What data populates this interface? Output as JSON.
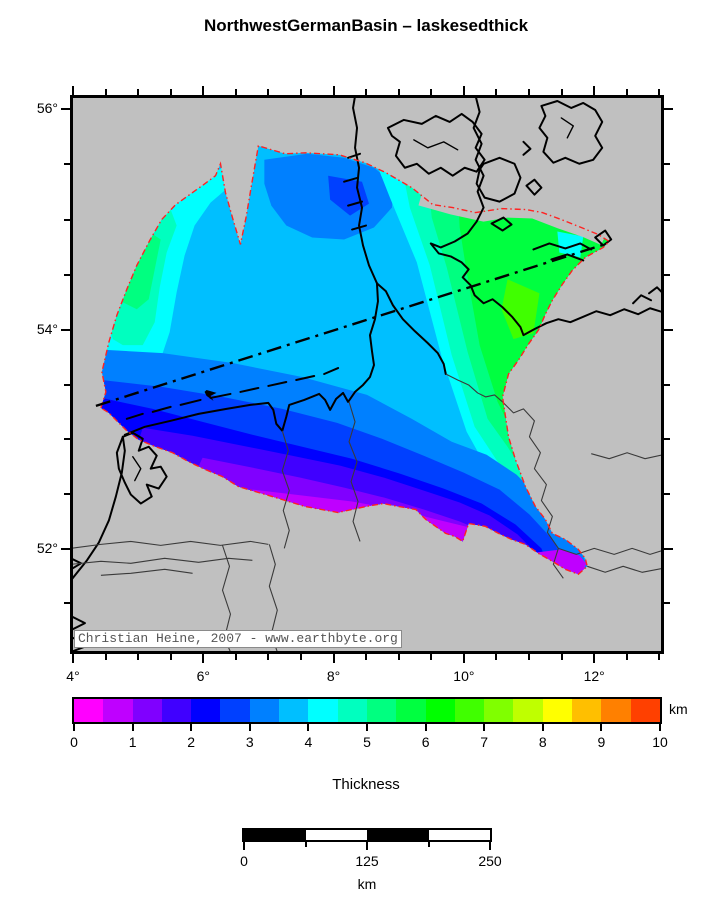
{
  "title": "NorthwestGermanBasin – laskesedthick",
  "map": {
    "attribution": "Christian Heine, 2007 - www.earthbyte.org",
    "background_color": "#c0c0c0",
    "basin_outline_color": "#ff2222",
    "axes": {
      "lat_labels": [
        "56°",
        "54°",
        "52°"
      ],
      "lon_labels": [
        "4°",
        "6°",
        "8°",
        "10°",
        "12°"
      ]
    }
  },
  "legend": {
    "title": "Thickness",
    "unit": "km",
    "min": 0,
    "max": 10,
    "step": 0.5,
    "tick_labels": [
      "0",
      "1",
      "2",
      "3",
      "4",
      "5",
      "6",
      "7",
      "8",
      "9",
      "10"
    ],
    "segment_colors": [
      "#ff00ff",
      "#bf00ff",
      "#8000ff",
      "#4000ff",
      "#0000ff",
      "#0040ff",
      "#0080ff",
      "#00bfff",
      "#00ffff",
      "#00ffbf",
      "#00ff80",
      "#00ff40",
      "#00ff00",
      "#40ff00",
      "#80ff00",
      "#bfff00",
      "#ffff00",
      "#ffbf00",
      "#ff8000",
      "#ff4000"
    ]
  },
  "scalebar": {
    "labels": [
      "0",
      "125",
      "250"
    ],
    "unit": "km"
  },
  "chart_data": {
    "type": "heatmap",
    "title": "NorthwestGermanBasin – laskesedthick",
    "variable": "Thickness",
    "unit": "km",
    "colorbar_range": [
      0,
      10
    ],
    "colorbar_step_km": 0.5,
    "lon_tick_labels_deg": [
      4,
      6,
      8,
      10,
      12
    ],
    "lat_tick_labels_deg": [
      56,
      54,
      52
    ],
    "scalebar_km": [
      0,
      125,
      250
    ],
    "observed_regions": [
      {
        "region": "northeast arm (Schleswig-Holstein / Danish border)",
        "thickness_km": "5.5–7"
      },
      {
        "region": "central sector (German Bight)",
        "thickness_km": "3.5–4.5"
      },
      {
        "region": "northwest margin patches",
        "thickness_km": "4.5–5.5"
      },
      {
        "region": "west / southwest (Dutch offshore)",
        "thickness_km": "2–3"
      },
      {
        "region": "southern margin band",
        "thickness_km": "1–2"
      },
      {
        "region": "southeastern tip lobe",
        "thickness_km": "0.5–1"
      }
    ]
  }
}
